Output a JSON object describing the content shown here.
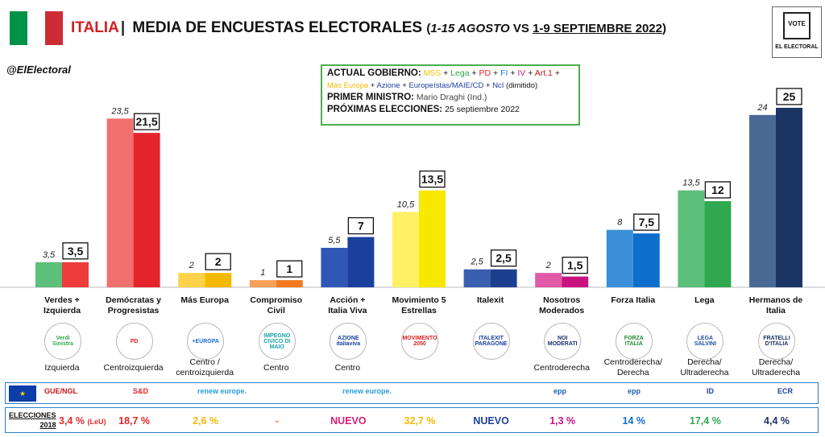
{
  "header": {
    "country": "ITALIA",
    "separator": "|",
    "title": "MEDIA DE ENCUESTAS ELECTORALES",
    "range_a": "1-15 AGOSTO",
    "vs": "VS",
    "range_b": "1-9 SEPTIEMBRE 2022",
    "flag_colors": [
      "#009246",
      "#ffffff",
      "#ce2b37"
    ]
  },
  "handle": "@ElElectoral",
  "logo": {
    "top": "VOTE",
    "name": "EL ELECTORAL"
  },
  "government": {
    "label_current": "ACTUAL GOBIERNO:",
    "parties": [
      {
        "name": "M5S",
        "color": "#f2c200"
      },
      {
        "name": "Lega",
        "color": "#2fa84f"
      },
      {
        "name": "PD",
        "color": "#e3242b"
      },
      {
        "name": "FI",
        "color": "#1d7ed8"
      },
      {
        "name": "IV",
        "color": "#d6217a"
      },
      {
        "name": "Art.1",
        "color": "#c0161b"
      },
      {
        "name": "Más Europa",
        "color": "#f5b800"
      },
      {
        "name": "Azione",
        "color": "#1b3f9c"
      },
      {
        "name": "Europeístas/MAIE/CD",
        "color": "#1b3f9c"
      },
      {
        "name": "NcI",
        "color": "#1b3f9c"
      }
    ],
    "ncl_note": "(dimitido)",
    "label_pm": "PRIMER MINISTRO:",
    "pm": "Mario Draghi (Ind.)",
    "label_next": "PRÓXIMAS ELECCIONES:",
    "next": "25 septiembre 2022"
  },
  "chart_data": {
    "type": "bar",
    "categories": [
      "Verdes + Izquierda",
      "Demócratas y Progresistas",
      "Más Europa",
      "Compromiso Civil",
      "Acción + Italia Viva",
      "Movimiento 5 Estrellas",
      "Italexit",
      "Nosotros Moderados",
      "Forza Italia",
      "Lega",
      "Hermanos de Italia"
    ],
    "series": [
      {
        "name": "1-15 AGOSTO",
        "values": [
          3.5,
          23.5,
          2,
          1,
          5.5,
          10.5,
          2.5,
          2,
          8,
          13.5,
          24
        ]
      },
      {
        "name": "1-9 SEPTIEMBRE 2022",
        "values": [
          3.5,
          21.5,
          2,
          1,
          7,
          13.5,
          2.5,
          1.5,
          7.5,
          12,
          25
        ]
      }
    ],
    "value_labels_prev": [
      "3,5",
      "23,5",
      "2",
      "1",
      "5,5",
      "10,5",
      "2,5",
      "2",
      "8",
      "13,5",
      "24"
    ],
    "value_labels_curr": [
      "3,5",
      "21,5",
      "2",
      "1",
      "7",
      "13,5",
      "2,5",
      "1,5",
      "7,5",
      "12",
      "25"
    ],
    "colors_prev": [
      "#5cbf7a",
      "#f07070",
      "#ffd24a",
      "#f7a05a",
      "#2f57b5",
      "#fff066",
      "#3a5fb0",
      "#e05aa8",
      "#3b8fd8",
      "#5cbf7a",
      "#4a6a96"
    ],
    "colors_curr": [
      "#ee3b3b",
      "#e3242b",
      "#f5b800",
      "#f27c1f",
      "#1b3f9c",
      "#f7e800",
      "#1d3f8f",
      "#c8137f",
      "#0d6fcb",
      "#2fa84f",
      "#1a3564"
    ],
    "ylim": [
      0,
      26
    ]
  },
  "category_labels": [
    [
      "Verdes +",
      "Izquierda"
    ],
    [
      "Demócratas y",
      "Progresistas"
    ],
    [
      "Más Europa",
      ""
    ],
    [
      "Compromiso Civil",
      ""
    ],
    [
      "Acción +",
      "Italia Viva"
    ],
    [
      "Movimiento 5",
      "Estrellas"
    ],
    [
      "Italexit",
      ""
    ],
    [
      "Nosotros",
      "Moderados"
    ],
    [
      "Forza Italia",
      ""
    ],
    [
      "Lega",
      ""
    ],
    [
      "Hermanos de",
      "Italia"
    ]
  ],
  "ideology": [
    [
      "Izquierda",
      ""
    ],
    [
      "Centroizquierda",
      ""
    ],
    [
      "Centro /",
      "centroizquierda"
    ],
    [
      "Centro",
      ""
    ],
    [
      "Centro",
      ""
    ],
    [
      "",
      ""
    ],
    [
      "",
      ""
    ],
    [
      "Centroderecha",
      ""
    ],
    [
      "Centroderecha/",
      "Derecha"
    ],
    [
      "Derecha/",
      "Ultraderecha"
    ],
    [
      "Derecha/",
      "Ultraderecha"
    ]
  ],
  "party_logos": [
    {
      "text": "Verdi Sinistra",
      "color": "#2fa84f"
    },
    {
      "text": "PD",
      "color": "#e3242b"
    },
    {
      "text": "+EUROPA",
      "color": "#1b6fd6"
    },
    {
      "text": "IMPEGNO CIVICO DI MAIO",
      "color": "#19a3a8"
    },
    {
      "text": "AZIONE italiaviva",
      "color": "#1b3f9c"
    },
    {
      "text": "MOVIMENTO 2050",
      "color": "#d9201f"
    },
    {
      "text": "ITALEXIT PARAGONE",
      "color": "#1b3f9c"
    },
    {
      "text": "NOI MODERATI",
      "color": "#1a2f6b"
    },
    {
      "text": "FORZA ITALIA",
      "color": "#1f8a2f"
    },
    {
      "text": "LEGA SALVINI",
      "color": "#1b4f9c"
    },
    {
      "text": "FRATELLI D'ITALIA",
      "color": "#1a3564"
    }
  ],
  "eu_groups": {
    "flag": "★",
    "items": [
      "GUE/NGL",
      "S&D",
      "renew europe.",
      "renew europe.",
      "epp",
      "epp",
      "ID",
      "ECR"
    ]
  },
  "results_2018": {
    "label_line1": "ELECCIONES",
    "label_line2": "2018",
    "first": "3,4 %",
    "first_note": "(LeU)",
    "values": [
      "18,7 %",
      "2,6 %",
      "-",
      "NUEVO",
      "32,7 %",
      "NUEVO",
      "1,3 %",
      "14 %",
      "17,4 %",
      "4,4 %"
    ],
    "colors": [
      "#e3242b",
      "#f5b800",
      "#f27c1f",
      "#d6217a",
      "#f5b800",
      "#1b3f9c",
      "#c8137f",
      "#0d6fcb",
      "#2fa84f",
      "#1a3564"
    ]
  }
}
